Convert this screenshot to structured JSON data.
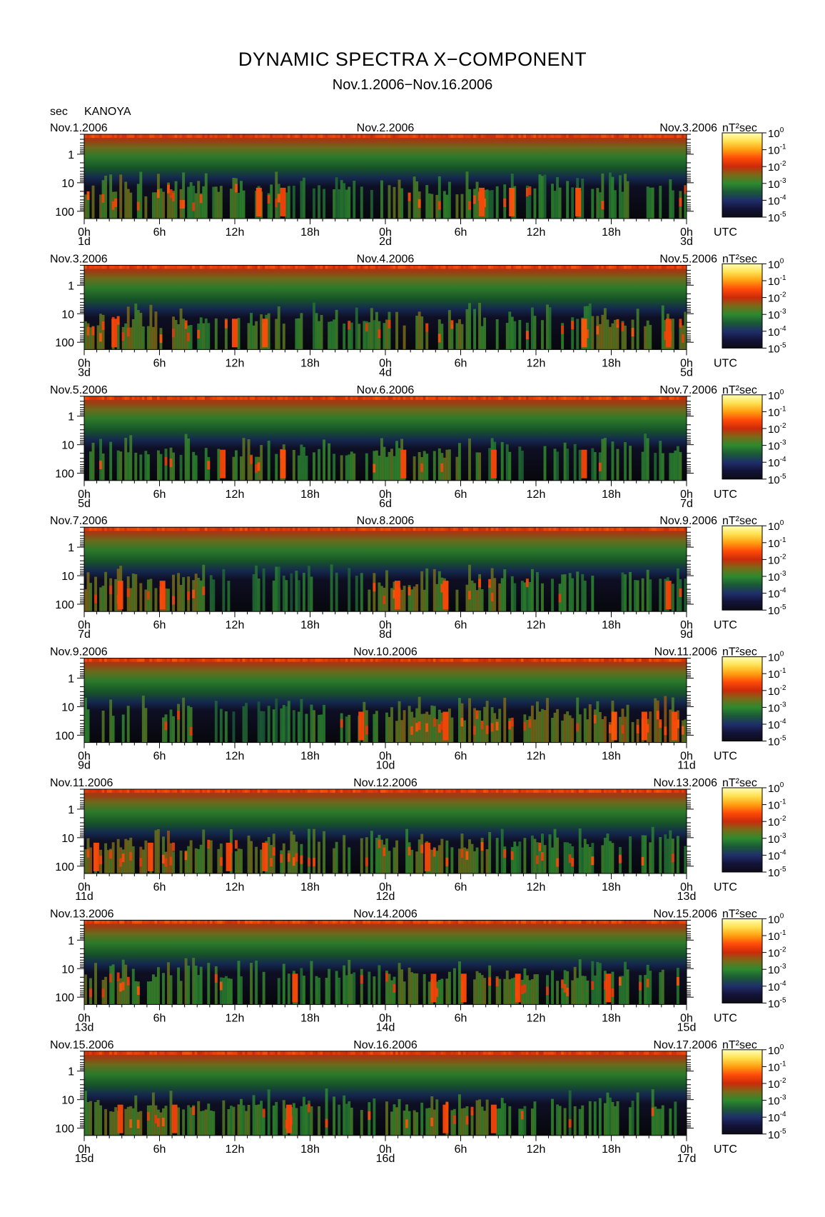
{
  "title": "DYNAMIC SPECTRA X−COMPONENT",
  "subtitle": "Nov.1.2006−Nov.16.2006",
  "yunit": "sec",
  "station": "KANOYA",
  "cbar_unit": "nT²sec",
  "utc_label": "UTC",
  "chart_data": {
    "type": "heatmap",
    "x_tick_labels": [
      "0h",
      "6h",
      "12h",
      "18h",
      "0h",
      "6h",
      "12h",
      "18h",
      "0h"
    ],
    "y_tick_labels": [
      "1",
      "10",
      "100"
    ],
    "y_ticks_sec": [
      1,
      10,
      100
    ],
    "y_scale": "log",
    "y_reversed": true,
    "y_range_sec": [
      0.2,
      180
    ],
    "colorbar": {
      "label": "nT²sec",
      "scale": "log",
      "range": [
        1e-05,
        1
      ],
      "ticks": [
        {
          "base": "10",
          "exp": "0"
        },
        {
          "base": "10",
          "exp": "-1"
        },
        {
          "base": "10",
          "exp": "-2"
        },
        {
          "base": "10",
          "exp": "-3"
        },
        {
          "base": "10",
          "exp": "-4"
        },
        {
          "base": "10",
          "exp": "-5"
        }
      ],
      "colors": [
        "#0c0c16",
        "#13133a",
        "#1f2f6a",
        "#1a5a36",
        "#2e8a2e",
        "#7a6a18",
        "#cc2a0a",
        "#ff4a08",
        "#ffa010",
        "#ffe050",
        "#ffffb8"
      ]
    },
    "panels": [
      {
        "left": "Nov.1.2006",
        "center": "Nov.2.2006",
        "right": "Nov.3.2006",
        "days": [
          "1d",
          "2d",
          "3d"
        ],
        "activity": [
          [
            0.0,
            0.17,
            0.55
          ],
          [
            0.17,
            0.34,
            0.35
          ],
          [
            0.34,
            0.5,
            0.15
          ],
          [
            0.5,
            0.67,
            0.45
          ],
          [
            0.67,
            0.84,
            0.2
          ],
          [
            0.84,
            1.0,
            0.3
          ]
        ],
        "bursts": [
          [
            0.29,
            0.85
          ],
          [
            0.71,
            0.9
          ],
          [
            0.82,
            0.85
          ],
          [
            0.33,
            0.6
          ],
          [
            0.66,
            0.75
          ]
        ]
      },
      {
        "left": "Nov.3.2006",
        "center": "Nov.4.2006",
        "right": "Nov.5.2006",
        "days": [
          "3d",
          "4d",
          "5d"
        ],
        "activity": [
          [
            0.0,
            0.17,
            0.6
          ],
          [
            0.17,
            0.34,
            0.4
          ],
          [
            0.34,
            0.5,
            0.3
          ],
          [
            0.5,
            0.67,
            0.55
          ],
          [
            0.67,
            0.84,
            0.25
          ],
          [
            0.84,
            1.0,
            0.55
          ]
        ],
        "bursts": [
          [
            0.05,
            0.6
          ],
          [
            0.25,
            0.8
          ],
          [
            0.3,
            0.85
          ],
          [
            0.83,
            0.95
          ],
          [
            0.97,
            0.6
          ]
        ]
      },
      {
        "left": "Nov.5.2006",
        "center": "Nov.6.2006",
        "right": "Nov.7.2006",
        "days": [
          "5d",
          "6d",
          "7d"
        ],
        "activity": [
          [
            0.0,
            0.17,
            0.3
          ],
          [
            0.17,
            0.34,
            0.45
          ],
          [
            0.34,
            0.5,
            0.35
          ],
          [
            0.5,
            0.67,
            0.5
          ],
          [
            0.67,
            0.84,
            0.15
          ],
          [
            0.84,
            1.0,
            0.2
          ]
        ],
        "bursts": [
          [
            0.23,
            0.7
          ],
          [
            0.33,
            0.85
          ],
          [
            0.53,
            0.7
          ],
          [
            0.68,
            0.6
          ],
          [
            0.83,
            0.6
          ]
        ]
      },
      {
        "left": "Nov.7.2006",
        "center": "Nov.8.2006",
        "right": "Nov.9.2006",
        "days": [
          "7d",
          "8d",
          "9d"
        ],
        "activity": [
          [
            0.0,
            0.2,
            0.6
          ],
          [
            0.2,
            0.47,
            0.05
          ],
          [
            0.47,
            0.69,
            0.6
          ],
          [
            0.69,
            0.8,
            0.2
          ],
          [
            0.8,
            1.0,
            0.2
          ]
        ],
        "bursts": [
          [
            0.06,
            0.7
          ],
          [
            0.13,
            0.7
          ],
          [
            0.52,
            0.7
          ],
          [
            0.6,
            0.7
          ],
          [
            0.97,
            0.6
          ]
        ]
      },
      {
        "left": "Nov.9.2006",
        "center": "Nov.10.2006",
        "right": "Nov.11.2006",
        "days": [
          "9d",
          "10d",
          "11d"
        ],
        "activity": [
          [
            0.0,
            0.2,
            0.45
          ],
          [
            0.2,
            0.36,
            0.05
          ],
          [
            0.36,
            0.5,
            0.35
          ],
          [
            0.5,
            0.86,
            0.6
          ],
          [
            0.86,
            1.0,
            0.75
          ]
        ],
        "bursts": [
          [
            0.88,
            0.95
          ],
          [
            0.93,
            0.8
          ],
          [
            0.98,
            0.8
          ],
          [
            0.46,
            0.6
          ],
          [
            0.6,
            0.6
          ]
        ]
      },
      {
        "left": "Nov.11.2006",
        "center": "Nov.12.2006",
        "right": "Nov.13.2006",
        "days": [
          "11d",
          "12d",
          "13d"
        ],
        "activity": [
          [
            0.0,
            0.17,
            0.7
          ],
          [
            0.17,
            0.34,
            0.55
          ],
          [
            0.34,
            0.5,
            0.5
          ],
          [
            0.5,
            0.67,
            0.55
          ],
          [
            0.67,
            0.84,
            0.3
          ],
          [
            0.84,
            1.0,
            0.3
          ]
        ],
        "bursts": [
          [
            0.02,
            0.8
          ],
          [
            0.11,
            0.7
          ],
          [
            0.24,
            0.7
          ],
          [
            0.3,
            0.75
          ],
          [
            0.57,
            0.6
          ]
        ]
      },
      {
        "left": "Nov.13.2006",
        "center": "Nov.14.2006",
        "right": "Nov.15.2006",
        "days": [
          "13d",
          "14d",
          "15d"
        ],
        "activity": [
          [
            0.0,
            0.17,
            0.5
          ],
          [
            0.17,
            0.34,
            0.3
          ],
          [
            0.34,
            0.5,
            0.25
          ],
          [
            0.5,
            0.67,
            0.55
          ],
          [
            0.67,
            0.84,
            0.45
          ],
          [
            0.84,
            1.0,
            0.3
          ]
        ],
        "bursts": [
          [
            0.35,
            0.7
          ],
          [
            0.63,
            0.8
          ],
          [
            0.72,
            0.7
          ],
          [
            0.87,
            0.6
          ],
          [
            0.58,
            0.6
          ]
        ]
      },
      {
        "left": "Nov.15.2006",
        "center": "Nov.16.2006",
        "right": "Nov.17.2006",
        "days": [
          "15d",
          "16d",
          "17d"
        ],
        "activity": [
          [
            0.0,
            0.17,
            0.55
          ],
          [
            0.17,
            0.34,
            0.4
          ],
          [
            0.34,
            0.5,
            0.3
          ],
          [
            0.5,
            0.67,
            0.5
          ],
          [
            0.67,
            0.84,
            0.25
          ],
          [
            0.84,
            1.0,
            0.25
          ]
        ],
        "bursts": [
          [
            0.06,
            0.6
          ],
          [
            0.15,
            0.6
          ],
          [
            0.34,
            0.7
          ],
          [
            0.6,
            0.7
          ],
          [
            0.68,
            0.6
          ]
        ]
      }
    ]
  }
}
